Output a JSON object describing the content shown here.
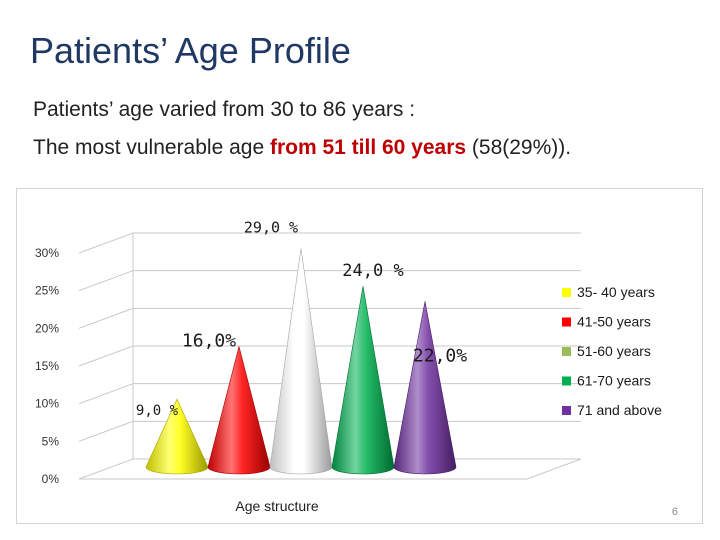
{
  "slide": {
    "title": "Patients’ Age Profile",
    "line1": "Patients’ age varied from 30  to 86 years  :",
    "line2_before": "The most vulnerable age ",
    "line2_highlight": "from 51 till 60 years",
    "line2_after": "  (58(29%)).",
    "highlight_color": "#c00000",
    "slide_number": "6"
  },
  "chart_data": {
    "type": "bar",
    "shape": "cone",
    "title": "",
    "xlabel": "Age structure",
    "ylabel": "",
    "ylim": [
      0,
      30
    ],
    "yticks": [
      "0%",
      "5%",
      "10%",
      "15%",
      "20%",
      "25%",
      "30%"
    ],
    "ytick_values": [
      0,
      5,
      10,
      15,
      20,
      25,
      30
    ],
    "grid": true,
    "legend_position": "right",
    "categories": [
      "35- 40 years",
      "41-50 years",
      "51-60 years",
      "61-70 years",
      "71 and above"
    ],
    "values": [
      9,
      16,
      29,
      24,
      22
    ],
    "data_labels": [
      "9,0 %",
      "16,0%",
      "29,0 %",
      "24,0 %",
      "22,0%"
    ],
    "bar_colors": [
      "#ffff00",
      "#ff0000",
      "#ffffff",
      "#00b050",
      "#7030a0"
    ],
    "legend": [
      {
        "label": "35- 40 years",
        "color": "#ffff00"
      },
      {
        "label": "41-50 years",
        "color": "#ff0000"
      },
      {
        "label": "51-60 years",
        "color": "#9bbb59"
      },
      {
        "label": "61-70 years",
        "color": "#00b050"
      },
      {
        "label": "71 and above",
        "color": "#7030a0"
      }
    ]
  }
}
